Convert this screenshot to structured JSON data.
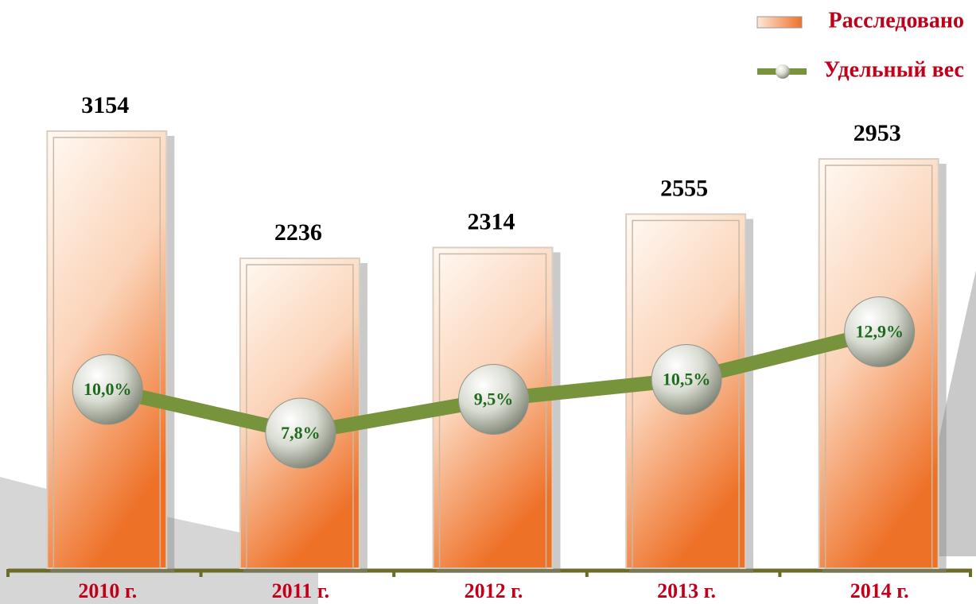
{
  "chart_data": {
    "type": "bar_line",
    "categories": [
      "2010 г.",
      "2011 г.",
      "2012 г.",
      "2013 г.",
      "2014 г."
    ],
    "series": [
      {
        "name": "Расследовано",
        "color": "#ef7a35",
        "type": "bar",
        "values": [
          3154,
          2236,
          2314,
          2555,
          2953
        ]
      },
      {
        "name": "Удельный вес",
        "color": "#77933c",
        "type": "line",
        "axis": "y2",
        "values": [
          10.0,
          7.8,
          9.5,
          10.5,
          12.9
        ],
        "value_labels": [
          "10,0%",
          "7,8%",
          "9,5%",
          "10,5%",
          "12,9%"
        ]
      }
    ],
    "ylim": [
      0,
      4100
    ],
    "y2lim": [
      1,
      29.6
    ],
    "legend": "top-right"
  }
}
